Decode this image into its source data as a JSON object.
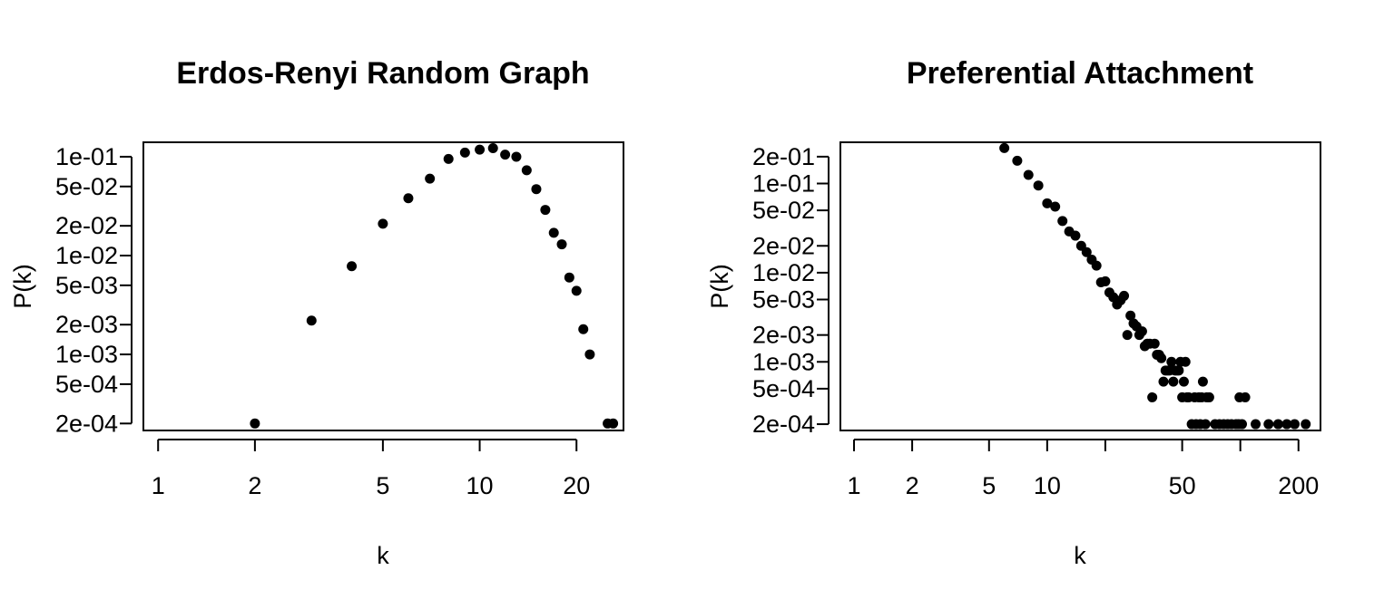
{
  "chart_data": [
    {
      "type": "scatter",
      "title": "Erdos-Renyi Random Graph",
      "xlabel": "k",
      "ylabel": "P(k)",
      "x_scale": "log",
      "y_scale": "log",
      "xlim": [
        0.9,
        28
      ],
      "ylim": [
        0.00017,
        0.14
      ],
      "x_ticks": [
        1,
        2,
        5,
        10,
        20
      ],
      "x_tick_labels": [
        "1",
        "2",
        "5",
        "10",
        "20"
      ],
      "y_ticks": [
        0.1,
        0.05,
        0.02,
        0.01,
        0.005,
        0.002,
        0.001,
        0.0005,
        0.0002
      ],
      "y_tick_labels": [
        "1e-01",
        "5e-02",
        "2e-02",
        "1e-02",
        "5e-03",
        "2e-03",
        "1e-03",
        "5e-04",
        "2e-04"
      ],
      "grid": false,
      "legend": "none",
      "points": [
        [
          2,
          0.0002
        ],
        [
          3,
          0.0022
        ],
        [
          4,
          0.0078
        ],
        [
          5,
          0.021
        ],
        [
          6,
          0.038
        ],
        [
          7,
          0.06
        ],
        [
          8,
          0.095
        ],
        [
          9,
          0.11
        ],
        [
          10,
          0.118
        ],
        [
          11,
          0.122
        ],
        [
          12,
          0.105
        ],
        [
          13,
          0.1
        ],
        [
          14,
          0.073
        ],
        [
          15,
          0.047
        ],
        [
          16,
          0.029
        ],
        [
          17,
          0.017
        ],
        [
          18,
          0.013
        ],
        [
          19,
          0.006
        ],
        [
          20,
          0.0044
        ],
        [
          21,
          0.0018
        ],
        [
          22,
          0.001
        ],
        [
          25,
          0.0002
        ],
        [
          26,
          0.0002
        ]
      ]
    },
    {
      "type": "scatter",
      "title": "Preferential Attachment",
      "xlabel": "k",
      "ylabel": "P(k)",
      "x_scale": "log",
      "y_scale": "log",
      "xlim": [
        0.85,
        260
      ],
      "ylim": [
        0.00017,
        0.29
      ],
      "x_ticks": [
        1,
        2,
        5,
        10,
        20,
        50,
        100,
        200
      ],
      "x_tick_labels": [
        "1",
        "2",
        "5",
        "10",
        "",
        "50",
        "",
        "200"
      ],
      "y_ticks": [
        0.2,
        0.1,
        0.05,
        0.02,
        0.01,
        0.005,
        0.002,
        0.001,
        0.0005,
        0.0002
      ],
      "y_tick_labels": [
        "2e-01",
        "1e-01",
        "5e-02",
        "2e-02",
        "1e-02",
        "5e-03",
        "2e-03",
        "1e-03",
        "5e-04",
        "2e-04"
      ],
      "grid": false,
      "legend": "none",
      "points": [
        [
          6,
          0.25
        ],
        [
          7,
          0.18
        ],
        [
          8,
          0.125
        ],
        [
          9,
          0.095
        ],
        [
          10,
          0.06
        ],
        [
          11,
          0.055
        ],
        [
          12,
          0.038
        ],
        [
          13,
          0.029
        ],
        [
          14,
          0.026
        ],
        [
          15,
          0.02
        ],
        [
          16,
          0.017
        ],
        [
          17,
          0.014
        ],
        [
          18,
          0.012
        ],
        [
          19,
          0.0078
        ],
        [
          20,
          0.008
        ],
        [
          21,
          0.006
        ],
        [
          22,
          0.0053
        ],
        [
          23,
          0.0044
        ],
        [
          24,
          0.0049
        ],
        [
          25,
          0.0055
        ],
        [
          26,
          0.002
        ],
        [
          27,
          0.0033
        ],
        [
          28,
          0.0027
        ],
        [
          29,
          0.0025
        ],
        [
          30,
          0.002
        ],
        [
          31,
          0.0022
        ],
        [
          32,
          0.0015
        ],
        [
          33,
          0.0016
        ],
        [
          34,
          0.0016
        ],
        [
          35,
          0.0004
        ],
        [
          36,
          0.0016
        ],
        [
          37,
          0.0012
        ],
        [
          38,
          0.0012
        ],
        [
          39,
          0.0011
        ],
        [
          40,
          0.0006
        ],
        [
          41,
          0.0008
        ],
        [
          42,
          0.0008
        ],
        [
          43,
          0.0008
        ],
        [
          44,
          0.001
        ],
        [
          45,
          0.0006
        ],
        [
          46,
          0.0008
        ],
        [
          47,
          0.0008
        ],
        [
          48,
          0.0008
        ],
        [
          49,
          0.001
        ],
        [
          50,
          0.0004
        ],
        [
          51,
          0.0006
        ],
        [
          52,
          0.001
        ],
        [
          53,
          0.0004
        ],
        [
          54,
          0.0004
        ],
        [
          56,
          0.0002
        ],
        [
          58,
          0.0004
        ],
        [
          59,
          0.0002
        ],
        [
          61,
          0.0004
        ],
        [
          62,
          0.0002
        ],
        [
          63,
          0.0004
        ],
        [
          64,
          0.0006
        ],
        [
          66,
          0.0002
        ],
        [
          67,
          0.0004
        ],
        [
          69,
          0.0004
        ],
        [
          74,
          0.0002
        ],
        [
          78,
          0.0002
        ],
        [
          82,
          0.0002
        ],
        [
          86,
          0.0002
        ],
        [
          90,
          0.0002
        ],
        [
          95,
          0.0002
        ],
        [
          98,
          0.0002
        ],
        [
          99,
          0.0004
        ],
        [
          102,
          0.0002
        ],
        [
          106,
          0.0004
        ],
        [
          120,
          0.0002
        ],
        [
          140,
          0.0002
        ],
        [
          157,
          0.0002
        ],
        [
          174,
          0.0002
        ],
        [
          191,
          0.0002
        ],
        [
          218,
          0.0002
        ]
      ]
    }
  ]
}
